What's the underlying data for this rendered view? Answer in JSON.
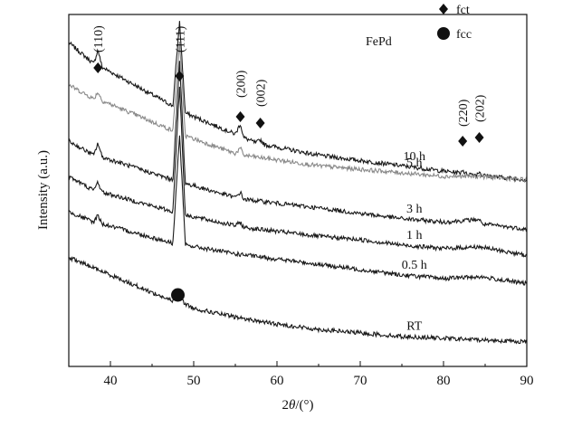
{
  "chart_data": {
    "type": "line",
    "title": "",
    "xlabel_parts": [
      "2",
      "θ",
      "/(°)"
    ],
    "ylabel": "Intensity (a.u.)",
    "xlim": [
      35,
      90
    ],
    "y_scale": "arbitrary units, curves vertically offset",
    "xticks": [
      40,
      50,
      60,
      70,
      80,
      90
    ],
    "x_tick_labels": [
      "40",
      "50",
      "60",
      "70",
      "80",
      "90"
    ],
    "sample_label": "FePd",
    "legend": [
      {
        "marker": "diamond",
        "label": "fct"
      },
      {
        "marker": "circle",
        "label": "fcc"
      }
    ],
    "legend_placement": "top-right",
    "peaks": [
      {
        "hkl": "(110)",
        "two_theta": 38.5,
        "phase": "fct"
      },
      {
        "hkl": "(111)",
        "two_theta": 48.3,
        "phase": "fct"
      },
      {
        "hkl": "(200)",
        "two_theta": 55.6,
        "phase": "fct"
      },
      {
        "hkl": "(002)",
        "two_theta": 58.0,
        "phase": "fct"
      },
      {
        "hkl": "(220)",
        "two_theta": 82.3,
        "phase": "fct"
      },
      {
        "hkl": "(202)",
        "two_theta": 84.3,
        "phase": "fct"
      }
    ],
    "fcc_peak": {
      "two_theta": 48.1,
      "phase": "fcc"
    },
    "series": [
      {
        "name": "10 h",
        "color": "#1a1a1a",
        "label_x": 42.5,
        "x": [
          35,
          38,
          38.5,
          39,
          47.5,
          48.3,
          49,
          55,
          55.6,
          56,
          57.5,
          58,
          58.5,
          65,
          70,
          75,
          80,
          82,
          82.3,
          82.6,
          84,
          84.3,
          84.6,
          90
        ],
        "y": [
          0.92,
          0.86,
          0.9,
          0.85,
          0.74,
          0.98,
          0.72,
          0.66,
          0.69,
          0.65,
          0.635,
          0.645,
          0.63,
          0.6,
          0.585,
          0.57,
          0.555,
          0.55,
          0.56,
          0.548,
          0.545,
          0.555,
          0.543,
          0.53
        ]
      },
      {
        "name": "5 h",
        "color": "#8a8a8a",
        "label_x": 42.5,
        "x": [
          35,
          38,
          38.5,
          39,
          47.5,
          48.3,
          49,
          55,
          55.6,
          56,
          65,
          70,
          75,
          80,
          84.3,
          90
        ],
        "y": [
          0.8,
          0.76,
          0.78,
          0.755,
          0.67,
          0.92,
          0.655,
          0.605,
          0.62,
          0.6,
          0.57,
          0.56,
          0.55,
          0.54,
          0.54,
          0.53
        ]
      },
      {
        "name": "3 h",
        "color": "#1a1a1a",
        "label_x": 42.5,
        "x": [
          35,
          38,
          38.5,
          39,
          47.5,
          48.3,
          49,
          55,
          55.6,
          56,
          65,
          70,
          75,
          80,
          84.3,
          84.6,
          90
        ],
        "y": [
          0.64,
          0.6,
          0.635,
          0.595,
          0.53,
          0.87,
          0.52,
          0.48,
          0.495,
          0.475,
          0.45,
          0.435,
          0.42,
          0.41,
          0.418,
          0.405,
          0.39
        ]
      },
      {
        "name": "1 h",
        "color": "#1a1a1a",
        "label_x": 42.5,
        "x": [
          35,
          38,
          38.5,
          39,
          47.5,
          48.3,
          49,
          55,
          55.6,
          56,
          65,
          70,
          75,
          80,
          84.3,
          90
        ],
        "y": [
          0.54,
          0.5,
          0.525,
          0.495,
          0.44,
          0.8,
          0.43,
          0.4,
          0.41,
          0.395,
          0.37,
          0.36,
          0.345,
          0.335,
          0.34,
          0.315
        ]
      },
      {
        "name": "0.5 h",
        "color": "#1a1a1a",
        "label_x": 42.5,
        "x": [
          35,
          38,
          38.5,
          39,
          47.5,
          48.3,
          49,
          55,
          65,
          70,
          75,
          80,
          84.3,
          90
        ],
        "y": [
          0.44,
          0.41,
          0.43,
          0.405,
          0.35,
          0.66,
          0.345,
          0.32,
          0.29,
          0.275,
          0.26,
          0.25,
          0.255,
          0.235
        ]
      },
      {
        "name": "RT",
        "color": "#1a1a1a",
        "label_x": 42.5,
        "x": [
          35,
          40,
          45,
          47.5,
          48.1,
          48.8,
          50,
          55,
          60,
          65,
          70,
          75,
          80,
          85,
          90
        ],
        "y": [
          0.31,
          0.26,
          0.21,
          0.185,
          0.22,
          0.18,
          0.165,
          0.14,
          0.12,
          0.105,
          0.095,
          0.085,
          0.08,
          0.075,
          0.07
        ]
      }
    ]
  }
}
